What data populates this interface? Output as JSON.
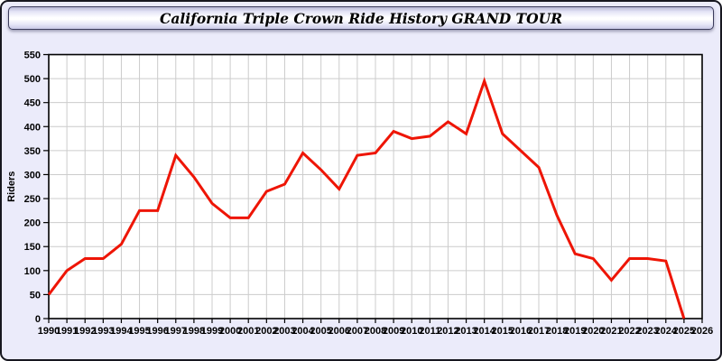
{
  "window": {
    "title_bar": {
      "title": "California Triple Crown Ride History GRAND TOUR"
    },
    "background_color": "#ebebfa",
    "border_color": "#16161f"
  },
  "chart_data": {
    "type": "line",
    "title": "California Triple Crown Ride History GRAND TOUR",
    "xlabel": "",
    "ylabel": "Riders",
    "ylim": [
      0,
      550
    ],
    "ytick_step": 50,
    "grid": true,
    "legend_position": "none",
    "plot_bg_color": "#ffffff",
    "grid_color": "#cccccc",
    "axis_color": "#000000",
    "x_axis_ticks": [
      1990,
      1991,
      1992,
      1993,
      1994,
      1995,
      1996,
      1997,
      1998,
      1999,
      2000,
      2001,
      2002,
      2003,
      2004,
      2005,
      2006,
      2007,
      2008,
      2009,
      2010,
      2011,
      2012,
      2013,
      2014,
      2015,
      2016,
      2017,
      2018,
      2019,
      2020,
      2021,
      2022,
      2023,
      2024,
      2025,
      2026
    ],
    "series": [
      {
        "name": "Riders",
        "color": "#ee1505",
        "x": [
          1990,
          1991,
          1992,
          1993,
          1994,
          1995,
          1996,
          1997,
          1998,
          1999,
          2000,
          2001,
          2002,
          2003,
          2004,
          2005,
          2006,
          2007,
          2008,
          2009,
          2010,
          2011,
          2012,
          2013,
          2014,
          2015,
          2016,
          2017,
          2018,
          2019,
          2020,
          2021,
          2022,
          2023,
          2024,
          2025
        ],
        "values": [
          50,
          100,
          125,
          125,
          155,
          225,
          225,
          340,
          295,
          240,
          210,
          210,
          265,
          280,
          345,
          310,
          270,
          340,
          345,
          390,
          375,
          380,
          410,
          385,
          495,
          385,
          350,
          315,
          215,
          135,
          125,
          80,
          125,
          125,
          120,
          0
        ]
      }
    ]
  }
}
